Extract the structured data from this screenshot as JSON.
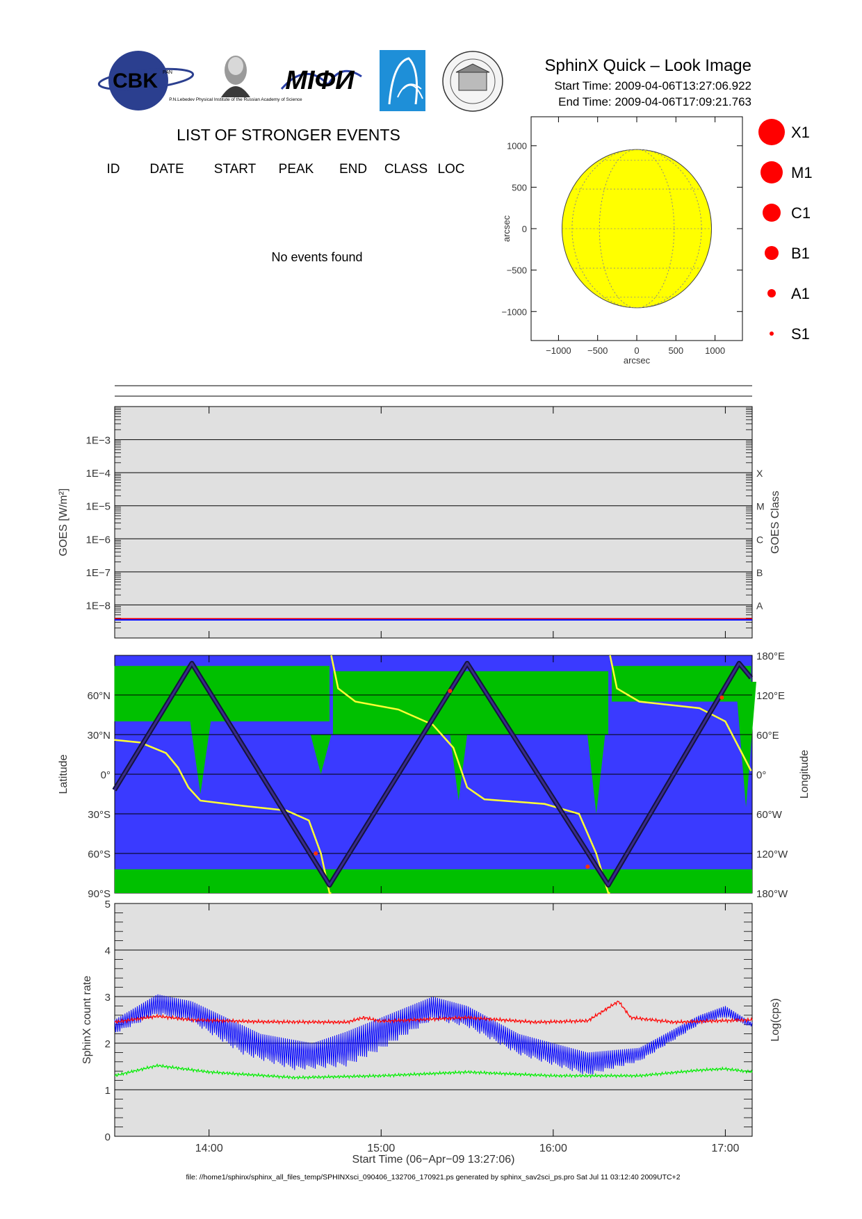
{
  "header": {
    "title": "SphinX Quick – Look Image",
    "start_time": "Start Time: 2009-04-06T13:27:06.922",
    "end_time": "End Time: 2009-04-06T17:09:21.763",
    "logos": {
      "cbk": "CBK",
      "cbk_sub": "PAN",
      "lebedev_caption": "P.N.Lebedev Physical Institute of the Russian Academy of Science",
      "mifi": "MIФИ"
    }
  },
  "events": {
    "heading": "LIST OF STRONGER EVENTS",
    "columns": [
      "ID",
      "DATE",
      "START",
      "PEAK",
      "END",
      "CLASS",
      "LOC"
    ],
    "empty_message": "No events found"
  },
  "legend": {
    "items": [
      {
        "label": "X1",
        "radius": 19
      },
      {
        "label": "M1",
        "radius": 16
      },
      {
        "label": "C1",
        "radius": 13
      },
      {
        "label": "B1",
        "radius": 10
      },
      {
        "label": "A1",
        "radius": 6
      },
      {
        "label": "S1",
        "radius": 3
      }
    ],
    "color": "#ff0000"
  },
  "chart_data": [
    {
      "type": "scatter",
      "id": "sun-map",
      "xlabel": "arcsec",
      "ylabel": "arcsec",
      "xticks": [
        -1000,
        -500,
        0,
        500,
        1000
      ],
      "yticks": [
        -1000,
        -500,
        0,
        500,
        1000
      ],
      "xlim": [
        -1350,
        1350
      ],
      "ylim": [
        -1350,
        1350
      ],
      "solar_radius": 955,
      "disk_color": "#ffff00",
      "points": []
    },
    {
      "type": "line",
      "id": "goes",
      "ylabel": "GOES [W/m²]",
      "ylabel_right": "GOES Class",
      "yscale": "log",
      "ylim_log10": [
        -9.0,
        -2.0
      ],
      "ytick_labels": [
        {
          "label": "1E−3",
          "log10": -3
        },
        {
          "label": "1E−4",
          "log10": -4
        },
        {
          "label": "1E−5",
          "log10": -5
        },
        {
          "label": "1E−6",
          "log10": -6
        },
        {
          "label": "1E−7",
          "log10": -7
        },
        {
          "label": "1E−8",
          "log10": -8
        }
      ],
      "class_labels": [
        {
          "label": "X",
          "log10": -4
        },
        {
          "label": "M",
          "log10": -5
        },
        {
          "label": "C",
          "log10": -6
        },
        {
          "label": "B",
          "log10": -7
        },
        {
          "label": "A",
          "log10": -8
        }
      ],
      "series": [
        {
          "color": "#ff0000",
          "level_log10": -8.43
        },
        {
          "color": "#0000ff",
          "level_log10": -8.45
        }
      ],
      "background": "#e0e0e0",
      "grid": true
    },
    {
      "type": "area",
      "id": "orbit",
      "ylabel": "Latitude",
      "ylabel_right": "Longitude",
      "ytick_labels": [
        {
          "label": "60°N",
          "value": 60
        },
        {
          "label": "30°N",
          "value": 30
        },
        {
          "label": "0°",
          "value": 0
        },
        {
          "label": "30°S",
          "value": -30
        },
        {
          "label": "60°S",
          "value": -60
        },
        {
          "label": "90°S",
          "value": -90
        }
      ],
      "ytick_right_labels": [
        {
          "label": "180°E",
          "value": 180
        },
        {
          "label": "120°E",
          "value": 120
        },
        {
          "label": "60°E",
          "value": 60
        },
        {
          "label": "0°",
          "value": 0
        },
        {
          "label": "60°W",
          "value": -60
        },
        {
          "label": "120°W",
          "value": -120
        },
        {
          "label": "180°W",
          "value": -180
        }
      ],
      "ylim": [
        -90,
        90
      ],
      "latitude_track": [
        {
          "t": 13.45,
          "lat": -12
        },
        {
          "t": 13.9,
          "lat": 84
        },
        {
          "t": 14.7,
          "lat": -84
        },
        {
          "t": 15.5,
          "lat": 84
        },
        {
          "t": 16.32,
          "lat": -84
        },
        {
          "t": 17.08,
          "lat": 84
        },
        {
          "t": 17.15,
          "lat": 73
        }
      ],
      "longitude_track": [
        {
          "t": 13.45,
          "lon": 52
        },
        {
          "t": 13.6,
          "lon": 48
        },
        {
          "t": 13.75,
          "lon": 32
        },
        {
          "t": 13.82,
          "lon": 10
        },
        {
          "t": 13.88,
          "lon": -20
        },
        {
          "t": 13.95,
          "lon": -40
        },
        {
          "t": 14.2,
          "lon": -48
        },
        {
          "t": 14.45,
          "lon": -55
        },
        {
          "t": 14.58,
          "lon": -70
        },
        {
          "t": 14.65,
          "lon": -120
        },
        {
          "t": 14.7,
          "lon": -180
        },
        {
          "t": 14.71,
          "lon": 180
        },
        {
          "t": 14.75,
          "lon": 130
        },
        {
          "t": 14.85,
          "lon": 110
        },
        {
          "t": 15.1,
          "lon": 98
        },
        {
          "t": 15.3,
          "lon": 75
        },
        {
          "t": 15.42,
          "lon": 40
        },
        {
          "t": 15.5,
          "lon": -20
        },
        {
          "t": 15.6,
          "lon": -38
        },
        {
          "t": 15.95,
          "lon": -45
        },
        {
          "t": 16.15,
          "lon": -60
        },
        {
          "t": 16.25,
          "lon": -120
        },
        {
          "t": 16.32,
          "lon": -180
        },
        {
          "t": 16.33,
          "lon": 180
        },
        {
          "t": 16.37,
          "lon": 130
        },
        {
          "t": 16.5,
          "lon": 110
        },
        {
          "t": 16.85,
          "lon": 100
        },
        {
          "t": 17.0,
          "lon": 80
        },
        {
          "t": 17.08,
          "lon": 40
        },
        {
          "t": 17.15,
          "lon": 5
        }
      ],
      "colors": {
        "ocean": "#3a3aff",
        "land": "#00c000",
        "track": "#14143c",
        "longitude": "#ffff33",
        "hot": "#ff3300"
      }
    },
    {
      "type": "line",
      "id": "count-rate",
      "ylabel": "SphinX count rate",
      "ylabel_right": "Log(cps)",
      "ylim": [
        0,
        5
      ],
      "yticks": [
        0,
        1,
        2,
        3,
        4,
        5
      ],
      "xlim_hours": [
        13.4518,
        17.1559
      ],
      "xtick_labels": [
        {
          "label": "14:00",
          "t": 14.0
        },
        {
          "label": "15:00",
          "t": 15.0
        },
        {
          "label": "16:00",
          "t": 16.0
        },
        {
          "label": "17:00",
          "t": 17.0
        }
      ],
      "xlabel": "Start Time (06−Apr−09 13:27:06)",
      "background": "#e0e0e0",
      "series": [
        {
          "color": "#0000ff",
          "envelope_top": [
            {
              "t": 13.45,
              "v": 2.5
            },
            {
              "t": 13.7,
              "v": 3.05
            },
            {
              "t": 13.9,
              "v": 2.9
            },
            {
              "t": 14.3,
              "v": 2.2
            },
            {
              "t": 14.6,
              "v": 2.0
            },
            {
              "t": 14.8,
              "v": 2.25
            },
            {
              "t": 15.0,
              "v": 2.55
            },
            {
              "t": 15.3,
              "v": 3.0
            },
            {
              "t": 15.5,
              "v": 2.8
            },
            {
              "t": 15.8,
              "v": 2.2
            },
            {
              "t": 16.2,
              "v": 1.8
            },
            {
              "t": 16.5,
              "v": 1.9
            },
            {
              "t": 16.85,
              "v": 2.6
            },
            {
              "t": 17.0,
              "v": 2.8
            },
            {
              "t": 17.15,
              "v": 2.45
            }
          ],
          "envelope_bottom": [
            {
              "t": 13.45,
              "v": 2.2
            },
            {
              "t": 13.7,
              "v": 2.6
            },
            {
              "t": 13.9,
              "v": 2.45
            },
            {
              "t": 14.2,
              "v": 1.75
            },
            {
              "t": 14.5,
              "v": 1.42
            },
            {
              "t": 14.8,
              "v": 1.5
            },
            {
              "t": 15.0,
              "v": 1.85
            },
            {
              "t": 15.3,
              "v": 2.5
            },
            {
              "t": 15.5,
              "v": 2.35
            },
            {
              "t": 15.8,
              "v": 1.75
            },
            {
              "t": 16.2,
              "v": 1.3
            },
            {
              "t": 16.5,
              "v": 1.6
            },
            {
              "t": 16.85,
              "v": 2.4
            },
            {
              "t": 17.0,
              "v": 2.55
            },
            {
              "t": 17.15,
              "v": 2.35
            }
          ]
        },
        {
          "color": "#ff0000",
          "points": [
            {
              "t": 13.45,
              "v": 2.45
            },
            {
              "t": 13.7,
              "v": 2.58
            },
            {
              "t": 13.9,
              "v": 2.5
            },
            {
              "t": 14.3,
              "v": 2.46
            },
            {
              "t": 14.8,
              "v": 2.45
            },
            {
              "t": 14.9,
              "v": 2.55
            },
            {
              "t": 15.0,
              "v": 2.47
            },
            {
              "t": 15.5,
              "v": 2.55
            },
            {
              "t": 15.9,
              "v": 2.45
            },
            {
              "t": 16.2,
              "v": 2.48
            },
            {
              "t": 16.38,
              "v": 2.9
            },
            {
              "t": 16.45,
              "v": 2.55
            },
            {
              "t": 16.7,
              "v": 2.45
            },
            {
              "t": 17.15,
              "v": 2.5
            }
          ]
        },
        {
          "color": "#00ee00",
          "points": [
            {
              "t": 13.45,
              "v": 1.3
            },
            {
              "t": 13.7,
              "v": 1.52
            },
            {
              "t": 14.0,
              "v": 1.38
            },
            {
              "t": 14.5,
              "v": 1.26
            },
            {
              "t": 15.0,
              "v": 1.3
            },
            {
              "t": 15.5,
              "v": 1.38
            },
            {
              "t": 16.0,
              "v": 1.3
            },
            {
              "t": 16.5,
              "v": 1.3
            },
            {
              "t": 16.85,
              "v": 1.42
            },
            {
              "t": 17.0,
              "v": 1.45
            },
            {
              "t": 17.15,
              "v": 1.38
            }
          ]
        }
      ],
      "grid": true
    }
  ],
  "footer": "file: //home1/sphinx/sphinx_all_files_temp/SPHINXsci_090406_132706_170921.ps generated by sphinx_sav2sci_ps.pro Sat Jul 11 03:12:40 2009UTC+2"
}
